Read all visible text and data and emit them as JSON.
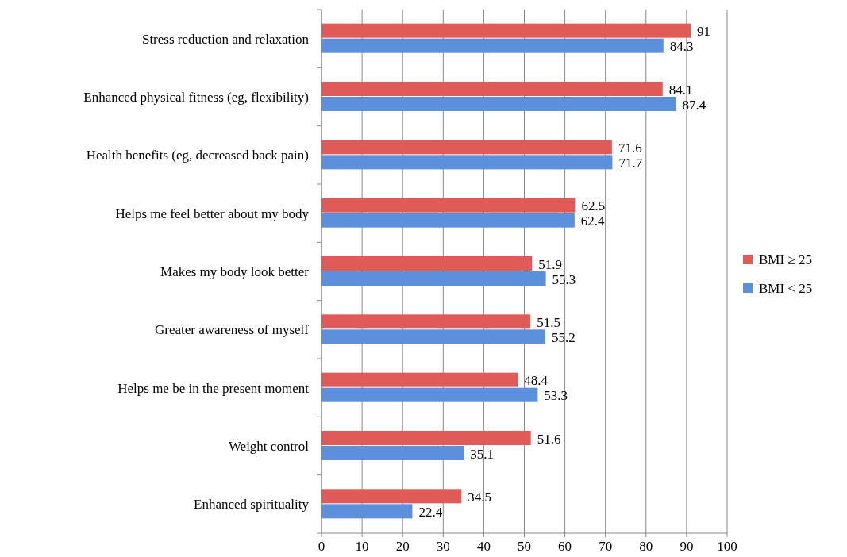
{
  "chart_data": {
    "type": "bar",
    "orientation": "horizontal",
    "categories": [
      "Stress reduction and relaxation",
      "Enhanced physical fitness (eg, flexibility)",
      "Health benefits (eg, decreased back pain)",
      "Helps me feel better about my body",
      "Makes my body look better",
      "Greater awareness of myself",
      "Helps me be in the present moment",
      "Weight control",
      "Enhanced spirituality"
    ],
    "series": [
      {
        "name": "BMI ≥ 25",
        "color": "#e05a57",
        "values": [
          91,
          84.1,
          71.6,
          62.5,
          51.9,
          51.5,
          48.4,
          51.6,
          34.5
        ]
      },
      {
        "name": "BMI < 25",
        "color": "#5c8fdc",
        "values": [
          84.3,
          87.4,
          71.7,
          62.4,
          55.3,
          55.2,
          53.3,
          35.1,
          22.4
        ]
      }
    ],
    "xlim": [
      0,
      100
    ],
    "xticks": [
      0,
      10,
      20,
      30,
      40,
      50,
      60,
      70,
      80,
      90,
      100
    ],
    "grid": "x",
    "legend": "right",
    "data_labels": true
  }
}
